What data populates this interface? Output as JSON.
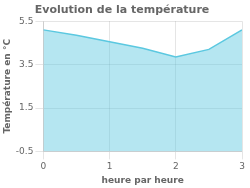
{
  "chart_data": {
    "type": "area",
    "title": "Evolution de la température",
    "xlabel": "heure par heure",
    "ylabel": "Température en °C",
    "x": [
      0,
      0.5,
      1,
      1.5,
      2,
      2.5,
      3
    ],
    "values": [
      5.1,
      4.85,
      4.55,
      4.25,
      3.85,
      4.2,
      5.1
    ],
    "color": "#5bc8e0",
    "xlim": [
      0,
      3
    ],
    "ylim": [
      -0.5,
      5.5
    ],
    "xticks": [
      0,
      1,
      2,
      3
    ],
    "yticks": [
      -0.5,
      1.5,
      3.5,
      5.5
    ],
    "grid": true
  }
}
